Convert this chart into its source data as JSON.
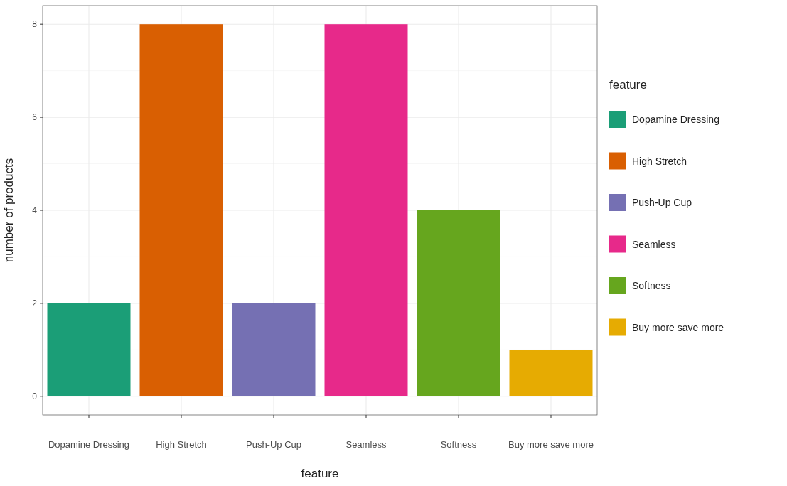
{
  "chart_data": {
    "type": "bar",
    "xlabel": "feature",
    "ylabel": "number of products",
    "legend_title": "feature",
    "categories": [
      "Dopamine Dressing",
      "High Stretch",
      "Push-Up Cup",
      "Seamless",
      "Softness",
      "Buy more save more"
    ],
    "series": [
      {
        "name": "Dopamine Dressing",
        "color": "#1b9e77",
        "values": [
          2,
          null,
          null,
          null,
          null,
          null
        ]
      },
      {
        "name": "High Stretch",
        "color": "#d95f02",
        "values": [
          null,
          8,
          null,
          null,
          null,
          null
        ]
      },
      {
        "name": "Push-Up Cup",
        "color": "#7570b3",
        "values": [
          null,
          null,
          2,
          null,
          null,
          null
        ]
      },
      {
        "name": "Seamless",
        "color": "#e7298a",
        "values": [
          null,
          null,
          null,
          8,
          null,
          null
        ]
      },
      {
        "name": "Softness",
        "color": "#66a61e",
        "values": [
          null,
          null,
          null,
          null,
          4,
          null
        ]
      },
      {
        "name": "Buy more save more",
        "color": "#e6ab02",
        "values": [
          null,
          null,
          null,
          null,
          null,
          1
        ]
      }
    ],
    "ylim": [
      -0.4,
      8.4
    ],
    "yticks": [
      0,
      2,
      4,
      6,
      8
    ],
    "grid": true,
    "legend": "right"
  }
}
